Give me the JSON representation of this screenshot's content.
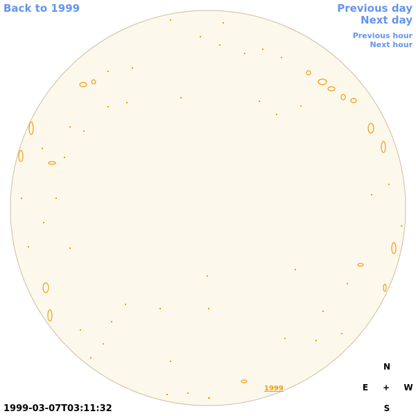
{
  "nav": {
    "back": "Back to 1999",
    "previous_day": "Previous day",
    "next_day": "Next day",
    "previous_hour": "Previous hour",
    "next_hour": "Next hour",
    "year_link": "1999"
  },
  "timestamp": "1999-03-07T03:11:32",
  "compass": {
    "north": "N",
    "east": "E",
    "center": "+",
    "west": "W",
    "south": "S"
  }
}
